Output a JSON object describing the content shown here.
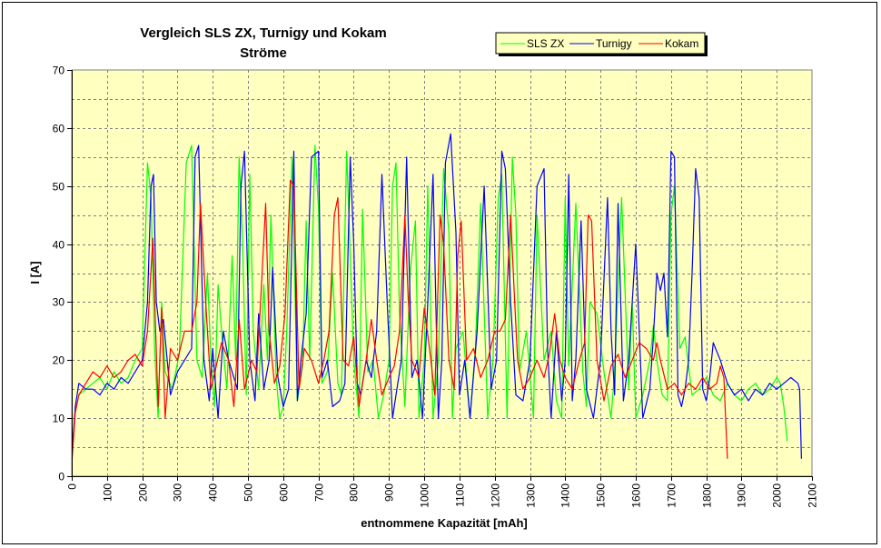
{
  "chart_data": {
    "type": "line",
    "title": "Vergleich SLS ZX, Turnigy und Kokam",
    "subtitle": "Ströme",
    "xlabel": "entnommene Kapazität [mAh]",
    "ylabel": "I [A]",
    "xlim": [
      0,
      2100
    ],
    "ylim": [
      0,
      70
    ],
    "x_ticks": [
      "0",
      "100",
      "200",
      "300",
      "400",
      "500",
      "600",
      "700",
      "800",
      "900",
      "1000",
      "1100",
      "1200",
      "1300",
      "1400",
      "1500",
      "1600",
      "1700",
      "1800",
      "1900",
      "2000",
      "2100"
    ],
    "y_ticks": [
      "0",
      "10",
      "20",
      "30",
      "40",
      "50",
      "60",
      "70"
    ],
    "grid": true,
    "legend_position": "top-right",
    "plot_background": "#ffffc0",
    "series": [
      {
        "name": "SLS ZX",
        "color": "#00ff00",
        "x": [
          0,
          10,
          20,
          40,
          60,
          80,
          100,
          120,
          140,
          160,
          180,
          200,
          215,
          225,
          235,
          245,
          255,
          265,
          285,
          305,
          325,
          340,
          345,
          355,
          370,
          385,
          395,
          405,
          415,
          425,
          440,
          455,
          465,
          475,
          485,
          495,
          505,
          515,
          530,
          545,
          555,
          565,
          580,
          590,
          600,
          610,
          625,
          640,
          655,
          665,
          675,
          690,
          700,
          710,
          725,
          740,
          755,
          765,
          780,
          800,
          815,
          825,
          840,
          855,
          870,
          885,
          900,
          910,
          920,
          930,
          945,
          960,
          975,
          985,
          1000,
          1010,
          1025,
          1040,
          1055,
          1070,
          1080,
          1090,
          1110,
          1130,
          1145,
          1160,
          1180,
          1195,
          1210,
          1220,
          1235,
          1250,
          1260,
          1270,
          1290,
          1310,
          1320,
          1340,
          1360,
          1375,
          1390,
          1400,
          1410,
          1430,
          1450,
          1460,
          1470,
          1490,
          1510,
          1530,
          1540,
          1560,
          1580,
          1590,
          1600,
          1620,
          1640,
          1650,
          1660,
          1675,
          1690,
          1700,
          1710,
          1725,
          1740,
          1760,
          1780,
          1800,
          1820,
          1840,
          1860,
          1880,
          1900,
          1920,
          1940,
          1960,
          1980,
          2000,
          2010,
          2020,
          2030
        ],
        "y": [
          4,
          11,
          14,
          15,
          16,
          17,
          15,
          18,
          16,
          17,
          20,
          22,
          54,
          48,
          22,
          10,
          30,
          18,
          15,
          21,
          54,
          57,
          45,
          20,
          17,
          35,
          20,
          12,
          33,
          25,
          15,
          38,
          20,
          55,
          40,
          14,
          52,
          25,
          15,
          33,
          20,
          45,
          17,
          10,
          12,
          25,
          55,
          13,
          19,
          44,
          20,
          57,
          46,
          16,
          18,
          35,
          16,
          14,
          56,
          20,
          10,
          46,
          18,
          20,
          10,
          14,
          20,
          50,
          54,
          28,
          12,
          35,
          44,
          10,
          20,
          50,
          10,
          20,
          53,
          42,
          10,
          22,
          25,
          10,
          22,
          47,
          10,
          20,
          48,
          52,
          10,
          55,
          45,
          18,
          25,
          10,
          45,
          20,
          25,
          13,
          10,
          48,
          19,
          47,
          18,
          12,
          30,
          28,
          18,
          10,
          18,
          48,
          15,
          30,
          10,
          14,
          20,
          26,
          20,
          14,
          13,
          45,
          50,
          22,
          24,
          14,
          15,
          17,
          14,
          13,
          16,
          14,
          13,
          15,
          16,
          14,
          15,
          17,
          16,
          12,
          6
        ]
      },
      {
        "name": "Turnigy",
        "color": "#0000ff",
        "x": [
          0,
          10,
          20,
          40,
          60,
          80,
          100,
          120,
          140,
          160,
          180,
          200,
          215,
          225,
          232,
          240,
          250,
          260,
          280,
          300,
          320,
          340,
          350,
          360,
          375,
          390,
          400,
          415,
          430,
          445,
          460,
          470,
          480,
          490,
          505,
          520,
          530,
          545,
          560,
          570,
          585,
          600,
          615,
          630,
          640,
          650,
          665,
          680,
          700,
          710,
          725,
          740,
          760,
          775,
          790,
          800,
          810,
          820,
          835,
          850,
          865,
          880,
          895,
          910,
          920,
          935,
          950,
          965,
          980,
          995,
          1010,
          1025,
          1040,
          1050,
          1060,
          1075,
          1090,
          1100,
          1115,
          1130,
          1150,
          1170,
          1190,
          1205,
          1220,
          1230,
          1245,
          1260,
          1280,
          1300,
          1320,
          1340,
          1350,
          1360,
          1375,
          1390,
          1400,
          1410,
          1420,
          1430,
          1445,
          1460,
          1480,
          1500,
          1520,
          1530,
          1540,
          1550,
          1565,
          1580,
          1600,
          1620,
          1640,
          1650,
          1660,
          1670,
          1680,
          1690,
          1700,
          1710,
          1720,
          1730,
          1740,
          1750,
          1760,
          1770,
          1780,
          1790,
          1800,
          1810,
          1820,
          1840,
          1860,
          1880,
          1900,
          1920,
          1940,
          1960,
          1980,
          2000,
          2020,
          2040,
          2060,
          2065,
          2070
        ],
        "y": [
          3,
          12,
          16,
          15,
          15,
          14,
          16,
          15,
          17,
          16,
          18,
          20,
          30,
          50,
          52,
          30,
          25,
          27,
          14,
          18,
          20,
          22,
          55,
          57,
          20,
          13,
          22,
          10,
          25,
          20,
          17,
          15,
          50,
          56,
          20,
          13,
          28,
          15,
          20,
          36,
          17,
          12,
          15,
          56,
          13,
          20,
          28,
          55,
          56,
          17,
          20,
          12,
          13,
          16,
          55,
          40,
          16,
          14,
          20,
          17,
          25,
          52,
          30,
          10,
          14,
          20,
          55,
          17,
          20,
          10,
          30,
          52,
          10,
          20,
          54,
          59,
          42,
          14,
          20,
          10,
          25,
          50,
          15,
          20,
          56,
          53,
          30,
          14,
          13,
          20,
          50,
          53,
          22,
          10,
          25,
          13,
          20,
          52,
          13,
          20,
          44,
          15,
          10,
          20,
          48,
          25,
          14,
          47,
          13,
          20,
          40,
          10,
          15,
          24,
          35,
          32,
          35,
          24,
          56,
          55,
          14,
          12,
          15,
          20,
          35,
          53,
          48,
          15,
          13,
          17,
          23,
          20,
          16,
          14,
          15,
          13,
          15,
          14,
          16,
          15,
          16,
          17,
          16,
          15,
          3
        ]
      },
      {
        "name": "Kokam",
        "color": "#ff0000",
        "x": [
          0,
          10,
          20,
          40,
          60,
          80,
          100,
          120,
          140,
          160,
          180,
          200,
          215,
          230,
          238,
          245,
          255,
          265,
          280,
          300,
          320,
          340,
          355,
          365,
          380,
          395,
          410,
          425,
          445,
          460,
          475,
          490,
          510,
          525,
          540,
          550,
          560,
          575,
          590,
          605,
          620,
          630,
          645,
          660,
          680,
          700,
          715,
          730,
          745,
          755,
          770,
          785,
          800,
          815,
          835,
          850,
          865,
          880,
          900,
          915,
          930,
          945,
          955,
          965,
          985,
          1000,
          1015,
          1030,
          1045,
          1055,
          1070,
          1085,
          1095,
          1105,
          1120,
          1140,
          1160,
          1180,
          1200,
          1215,
          1230,
          1245,
          1255,
          1265,
          1280,
          1300,
          1320,
          1340,
          1355,
          1370,
          1385,
          1400,
          1420,
          1440,
          1455,
          1465,
          1475,
          1490,
          1510,
          1530,
          1550,
          1570,
          1590,
          1610,
          1630,
          1650,
          1660,
          1670,
          1690,
          1710,
          1730,
          1750,
          1770,
          1790,
          1810,
          1830,
          1840,
          1850,
          1855,
          1860
        ],
        "y": [
          2,
          11,
          14,
          16,
          18,
          17,
          19,
          17,
          18,
          20,
          21,
          19,
          25,
          41,
          25,
          12,
          29,
          10,
          22,
          20,
          25,
          25,
          30,
          47,
          30,
          15,
          19,
          23,
          20,
          12,
          27,
          15,
          20,
          18,
          35,
          47,
          25,
          16,
          19,
          28,
          51,
          50,
          15,
          22,
          20,
          16,
          20,
          25,
          45,
          48,
          20,
          19,
          24,
          12,
          20,
          27,
          20,
          14,
          17,
          19,
          25,
          45,
          30,
          20,
          17,
          29,
          22,
          14,
          45,
          40,
          20,
          15,
          38,
          44,
          20,
          22,
          17,
          20,
          25,
          25,
          27,
          45,
          32,
          20,
          15,
          17,
          20,
          17,
          21,
          28,
          20,
          17,
          15,
          20,
          23,
          45,
          44,
          20,
          13,
          19,
          21,
          17,
          20,
          23,
          22,
          20,
          23,
          20,
          15,
          16,
          14,
          16,
          15,
          17,
          15,
          16,
          19,
          17,
          10,
          3
        ]
      }
    ]
  }
}
